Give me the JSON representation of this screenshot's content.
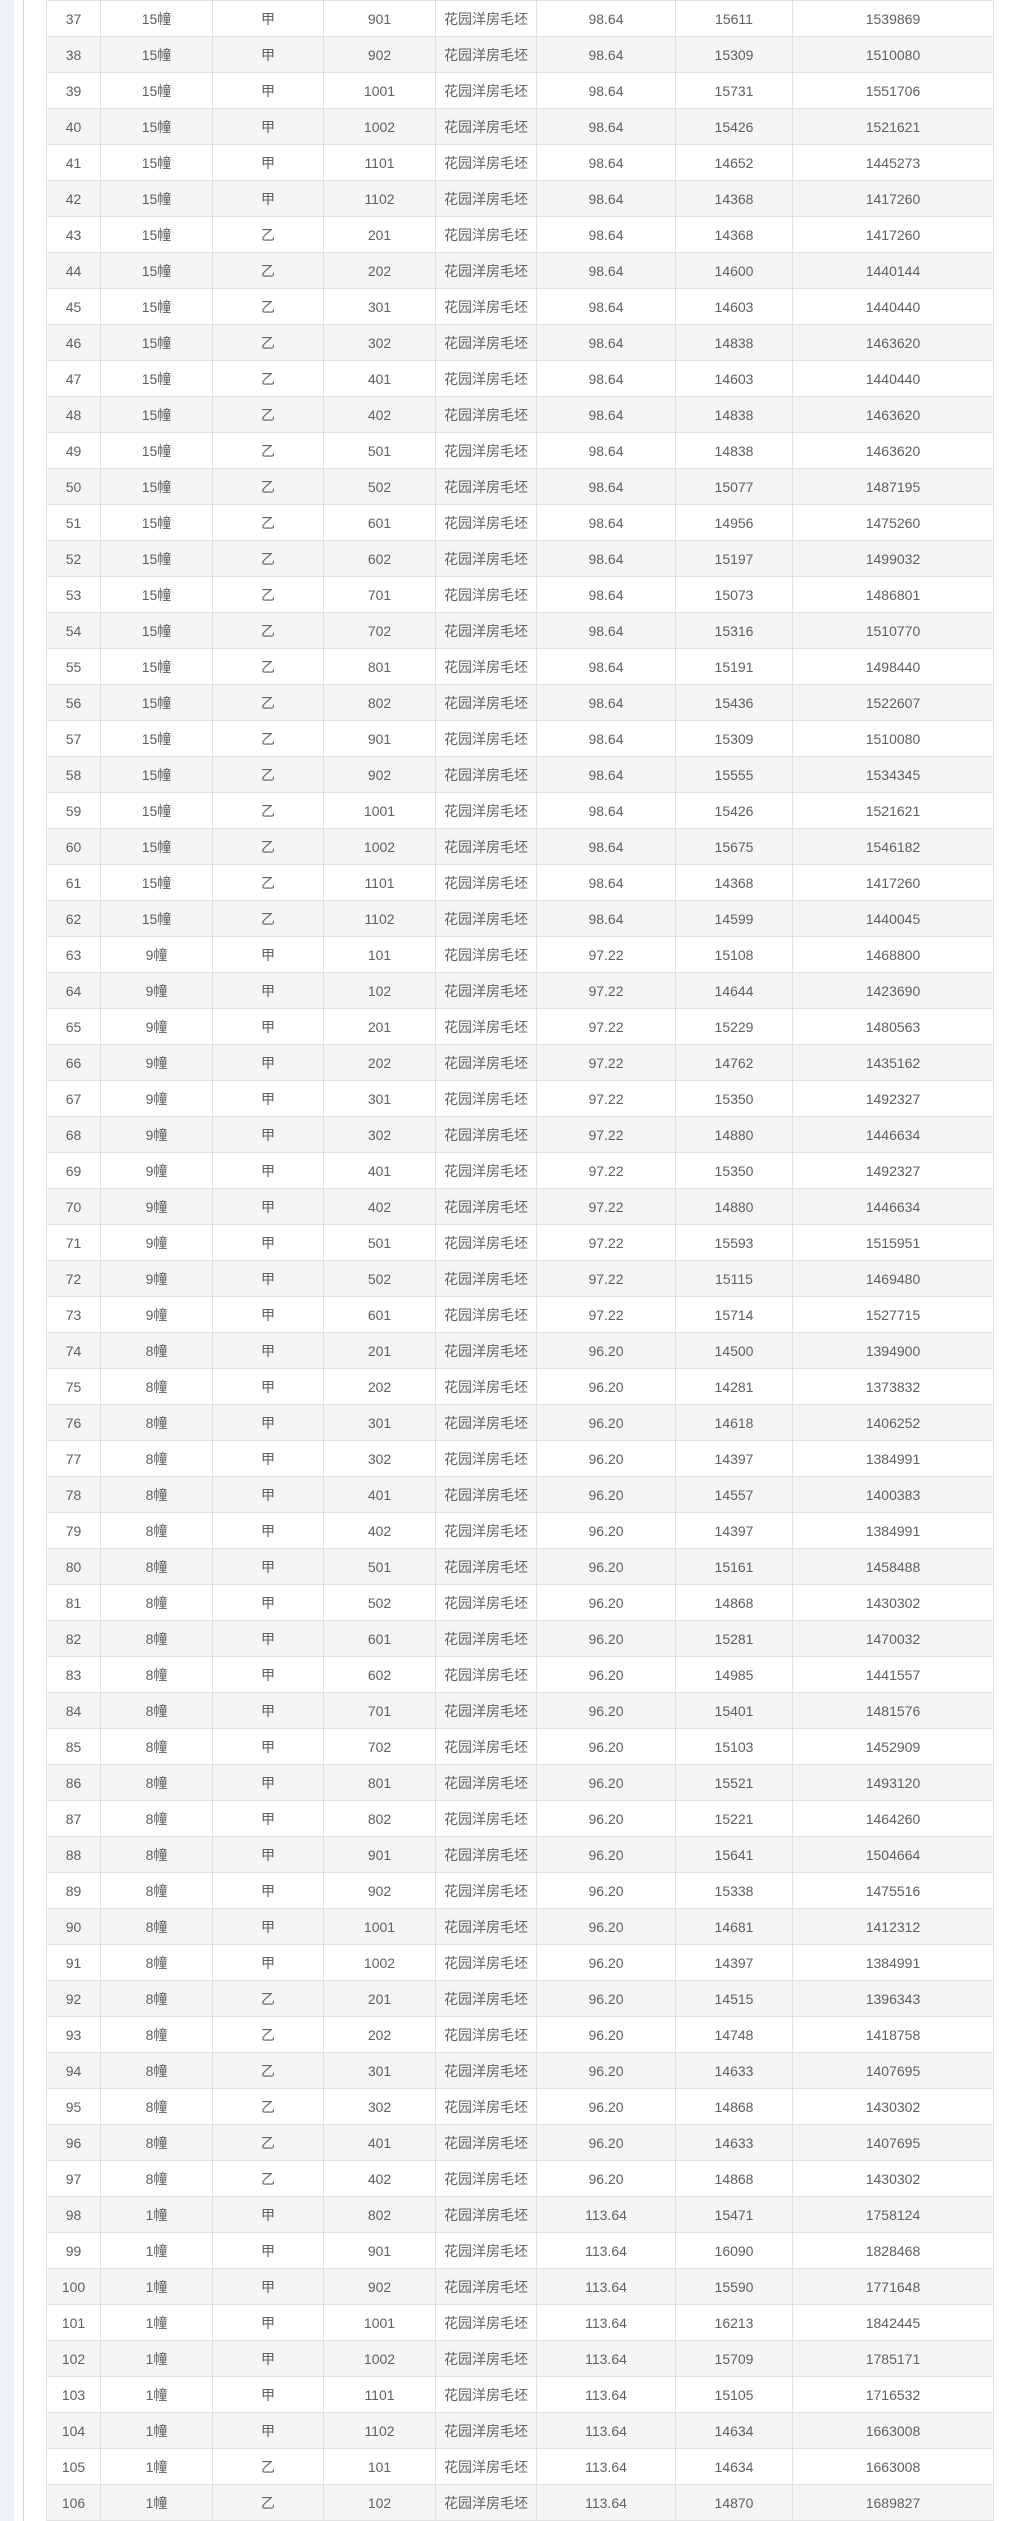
{
  "table": {
    "columns": [
      {
        "key": "row-index"
      },
      {
        "key": "building"
      },
      {
        "key": "unit"
      },
      {
        "key": "room"
      },
      {
        "key": "type"
      },
      {
        "key": "area"
      },
      {
        "key": "unit-price"
      },
      {
        "key": "total-price"
      }
    ],
    "rows": [
      [
        "37",
        "15幢",
        "甲",
        "901",
        "花园洋房毛坯",
        "98.64",
        "15611",
        "1539869"
      ],
      [
        "38",
        "15幢",
        "甲",
        "902",
        "花园洋房毛坯",
        "98.64",
        "15309",
        "1510080"
      ],
      [
        "39",
        "15幢",
        "甲",
        "1001",
        "花园洋房毛坯",
        "98.64",
        "15731",
        "1551706"
      ],
      [
        "40",
        "15幢",
        "甲",
        "1002",
        "花园洋房毛坯",
        "98.64",
        "15426",
        "1521621"
      ],
      [
        "41",
        "15幢",
        "甲",
        "1101",
        "花园洋房毛坯",
        "98.64",
        "14652",
        "1445273"
      ],
      [
        "42",
        "15幢",
        "甲",
        "1102",
        "花园洋房毛坯",
        "98.64",
        "14368",
        "1417260"
      ],
      [
        "43",
        "15幢",
        "乙",
        "201",
        "花园洋房毛坯",
        "98.64",
        "14368",
        "1417260"
      ],
      [
        "44",
        "15幢",
        "乙",
        "202",
        "花园洋房毛坯",
        "98.64",
        "14600",
        "1440144"
      ],
      [
        "45",
        "15幢",
        "乙",
        "301",
        "花园洋房毛坯",
        "98.64",
        "14603",
        "1440440"
      ],
      [
        "46",
        "15幢",
        "乙",
        "302",
        "花园洋房毛坯",
        "98.64",
        "14838",
        "1463620"
      ],
      [
        "47",
        "15幢",
        "乙",
        "401",
        "花园洋房毛坯",
        "98.64",
        "14603",
        "1440440"
      ],
      [
        "48",
        "15幢",
        "乙",
        "402",
        "花园洋房毛坯",
        "98.64",
        "14838",
        "1463620"
      ],
      [
        "49",
        "15幢",
        "乙",
        "501",
        "花园洋房毛坯",
        "98.64",
        "14838",
        "1463620"
      ],
      [
        "50",
        "15幢",
        "乙",
        "502",
        "花园洋房毛坯",
        "98.64",
        "15077",
        "1487195"
      ],
      [
        "51",
        "15幢",
        "乙",
        "601",
        "花园洋房毛坯",
        "98.64",
        "14956",
        "1475260"
      ],
      [
        "52",
        "15幢",
        "乙",
        "602",
        "花园洋房毛坯",
        "98.64",
        "15197",
        "1499032"
      ],
      [
        "53",
        "15幢",
        "乙",
        "701",
        "花园洋房毛坯",
        "98.64",
        "15073",
        "1486801"
      ],
      [
        "54",
        "15幢",
        "乙",
        "702",
        "花园洋房毛坯",
        "98.64",
        "15316",
        "1510770"
      ],
      [
        "55",
        "15幢",
        "乙",
        "801",
        "花园洋房毛坯",
        "98.64",
        "15191",
        "1498440"
      ],
      [
        "56",
        "15幢",
        "乙",
        "802",
        "花园洋房毛坯",
        "98.64",
        "15436",
        "1522607"
      ],
      [
        "57",
        "15幢",
        "乙",
        "901",
        "花园洋房毛坯",
        "98.64",
        "15309",
        "1510080"
      ],
      [
        "58",
        "15幢",
        "乙",
        "902",
        "花园洋房毛坯",
        "98.64",
        "15555",
        "1534345"
      ],
      [
        "59",
        "15幢",
        "乙",
        "1001",
        "花园洋房毛坯",
        "98.64",
        "15426",
        "1521621"
      ],
      [
        "60",
        "15幢",
        "乙",
        "1002",
        "花园洋房毛坯",
        "98.64",
        "15675",
        "1546182"
      ],
      [
        "61",
        "15幢",
        "乙",
        "1101",
        "花园洋房毛坯",
        "98.64",
        "14368",
        "1417260"
      ],
      [
        "62",
        "15幢",
        "乙",
        "1102",
        "花园洋房毛坯",
        "98.64",
        "14599",
        "1440045"
      ],
      [
        "63",
        "9幢",
        "甲",
        "101",
        "花园洋房毛坯",
        "97.22",
        "15108",
        "1468800"
      ],
      [
        "64",
        "9幢",
        "甲",
        "102",
        "花园洋房毛坯",
        "97.22",
        "14644",
        "1423690"
      ],
      [
        "65",
        "9幢",
        "甲",
        "201",
        "花园洋房毛坯",
        "97.22",
        "15229",
        "1480563"
      ],
      [
        "66",
        "9幢",
        "甲",
        "202",
        "花园洋房毛坯",
        "97.22",
        "14762",
        "1435162"
      ],
      [
        "67",
        "9幢",
        "甲",
        "301",
        "花园洋房毛坯",
        "97.22",
        "15350",
        "1492327"
      ],
      [
        "68",
        "9幢",
        "甲",
        "302",
        "花园洋房毛坯",
        "97.22",
        "14880",
        "1446634"
      ],
      [
        "69",
        "9幢",
        "甲",
        "401",
        "花园洋房毛坯",
        "97.22",
        "15350",
        "1492327"
      ],
      [
        "70",
        "9幢",
        "甲",
        "402",
        "花园洋房毛坯",
        "97.22",
        "14880",
        "1446634"
      ],
      [
        "71",
        "9幢",
        "甲",
        "501",
        "花园洋房毛坯",
        "97.22",
        "15593",
        "1515951"
      ],
      [
        "72",
        "9幢",
        "甲",
        "502",
        "花园洋房毛坯",
        "97.22",
        "15115",
        "1469480"
      ],
      [
        "73",
        "9幢",
        "甲",
        "601",
        "花园洋房毛坯",
        "97.22",
        "15714",
        "1527715"
      ],
      [
        "74",
        "8幢",
        "甲",
        "201",
        "花园洋房毛坯",
        "96.20",
        "14500",
        "1394900"
      ],
      [
        "75",
        "8幢",
        "甲",
        "202",
        "花园洋房毛坯",
        "96.20",
        "14281",
        "1373832"
      ],
      [
        "76",
        "8幢",
        "甲",
        "301",
        "花园洋房毛坯",
        "96.20",
        "14618",
        "1406252"
      ],
      [
        "77",
        "8幢",
        "甲",
        "302",
        "花园洋房毛坯",
        "96.20",
        "14397",
        "1384991"
      ],
      [
        "78",
        "8幢",
        "甲",
        "401",
        "花园洋房毛坯",
        "96.20",
        "14557",
        "1400383"
      ],
      [
        "79",
        "8幢",
        "甲",
        "402",
        "花园洋房毛坯",
        "96.20",
        "14397",
        "1384991"
      ],
      [
        "80",
        "8幢",
        "甲",
        "501",
        "花园洋房毛坯",
        "96.20",
        "15161",
        "1458488"
      ],
      [
        "81",
        "8幢",
        "甲",
        "502",
        "花园洋房毛坯",
        "96.20",
        "14868",
        "1430302"
      ],
      [
        "82",
        "8幢",
        "甲",
        "601",
        "花园洋房毛坯",
        "96.20",
        "15281",
        "1470032"
      ],
      [
        "83",
        "8幢",
        "甲",
        "602",
        "花园洋房毛坯",
        "96.20",
        "14985",
        "1441557"
      ],
      [
        "84",
        "8幢",
        "甲",
        "701",
        "花园洋房毛坯",
        "96.20",
        "15401",
        "1481576"
      ],
      [
        "85",
        "8幢",
        "甲",
        "702",
        "花园洋房毛坯",
        "96.20",
        "15103",
        "1452909"
      ],
      [
        "86",
        "8幢",
        "甲",
        "801",
        "花园洋房毛坯",
        "96.20",
        "15521",
        "1493120"
      ],
      [
        "87",
        "8幢",
        "甲",
        "802",
        "花园洋房毛坯",
        "96.20",
        "15221",
        "1464260"
      ],
      [
        "88",
        "8幢",
        "甲",
        "901",
        "花园洋房毛坯",
        "96.20",
        "15641",
        "1504664"
      ],
      [
        "89",
        "8幢",
        "甲",
        "902",
        "花园洋房毛坯",
        "96.20",
        "15338",
        "1475516"
      ],
      [
        "90",
        "8幢",
        "甲",
        "1001",
        "花园洋房毛坯",
        "96.20",
        "14681",
        "1412312"
      ],
      [
        "91",
        "8幢",
        "甲",
        "1002",
        "花园洋房毛坯",
        "96.20",
        "14397",
        "1384991"
      ],
      [
        "92",
        "8幢",
        "乙",
        "201",
        "花园洋房毛坯",
        "96.20",
        "14515",
        "1396343"
      ],
      [
        "93",
        "8幢",
        "乙",
        "202",
        "花园洋房毛坯",
        "96.20",
        "14748",
        "1418758"
      ],
      [
        "94",
        "8幢",
        "乙",
        "301",
        "花园洋房毛坯",
        "96.20",
        "14633",
        "1407695"
      ],
      [
        "95",
        "8幢",
        "乙",
        "302",
        "花园洋房毛坯",
        "96.20",
        "14868",
        "1430302"
      ],
      [
        "96",
        "8幢",
        "乙",
        "401",
        "花园洋房毛坯",
        "96.20",
        "14633",
        "1407695"
      ],
      [
        "97",
        "8幢",
        "乙",
        "402",
        "花园洋房毛坯",
        "96.20",
        "14868",
        "1430302"
      ],
      [
        "98",
        "1幢",
        "甲",
        "802",
        "花园洋房毛坯",
        "113.64",
        "15471",
        "1758124"
      ],
      [
        "99",
        "1幢",
        "甲",
        "901",
        "花园洋房毛坯",
        "113.64",
        "16090",
        "1828468"
      ],
      [
        "100",
        "1幢",
        "甲",
        "902",
        "花园洋房毛坯",
        "113.64",
        "15590",
        "1771648"
      ],
      [
        "101",
        "1幢",
        "甲",
        "1001",
        "花园洋房毛坯",
        "113.64",
        "16213",
        "1842445"
      ],
      [
        "102",
        "1幢",
        "甲",
        "1002",
        "花园洋房毛坯",
        "113.64",
        "15709",
        "1785171"
      ],
      [
        "103",
        "1幢",
        "甲",
        "1101",
        "花园洋房毛坯",
        "113.64",
        "15105",
        "1716532"
      ],
      [
        "104",
        "1幢",
        "甲",
        "1102",
        "花园洋房毛坯",
        "113.64",
        "14634",
        "1663008"
      ],
      [
        "105",
        "1幢",
        "乙",
        "101",
        "花园洋房毛坯",
        "113.64",
        "14634",
        "1663008"
      ],
      [
        "106",
        "1幢",
        "乙",
        "102",
        "花园洋房毛坯",
        "113.64",
        "14870",
        "1689827"
      ]
    ],
    "colors": {
      "stripe_row_bg": "#f5f5f5",
      "row_bg": "#ffffff",
      "cell_border": "#e2e2e2",
      "cell_text": "#606060",
      "page_gutter_bg": "#eef0fa",
      "panel_border": "#d6d6d6"
    }
  }
}
